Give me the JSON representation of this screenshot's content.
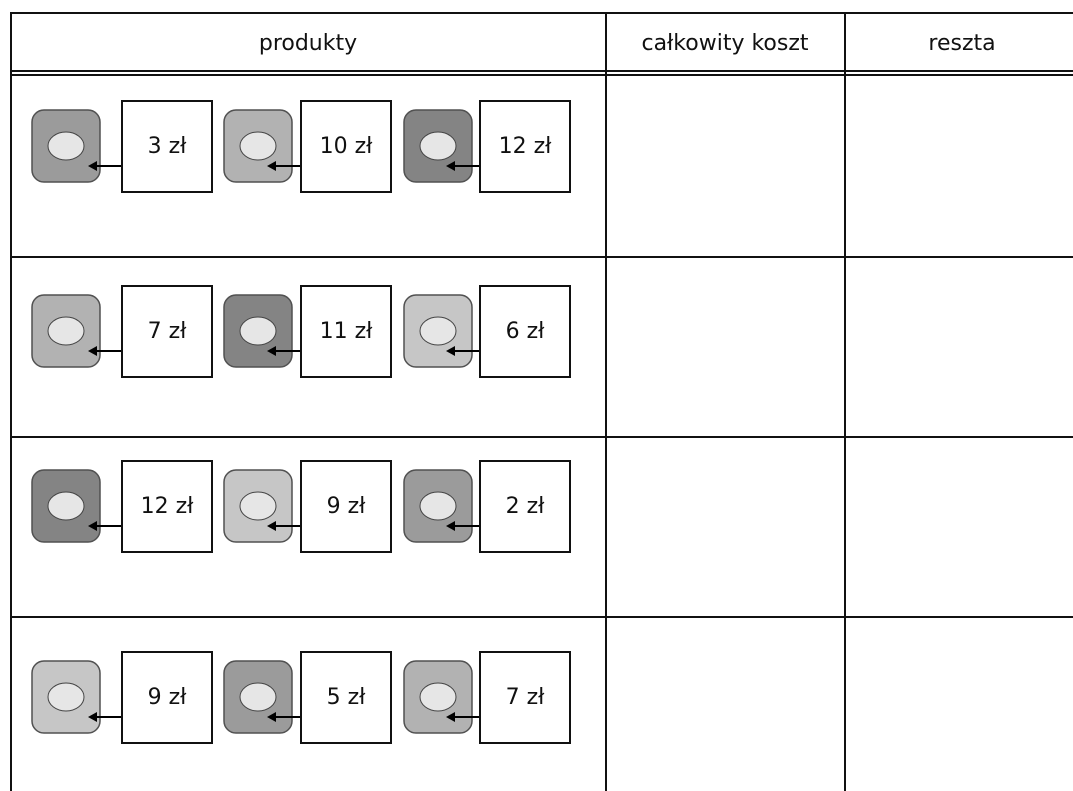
{
  "table": {
    "header": [
      "produkty",
      "całkowity koszt",
      "reszta"
    ],
    "rows": [
      {
        "prices": [
          "3 zł",
          "10 zł",
          "12 zł"
        ]
      },
      {
        "prices": [
          "7 zł",
          "11 zł",
          "6 zł"
        ]
      },
      {
        "prices": [
          "12 zł",
          "9 zł",
          "2 zł"
        ]
      },
      {
        "prices": [
          "9 zł",
          "5 zł",
          "7 zł"
        ]
      }
    ]
  }
}
